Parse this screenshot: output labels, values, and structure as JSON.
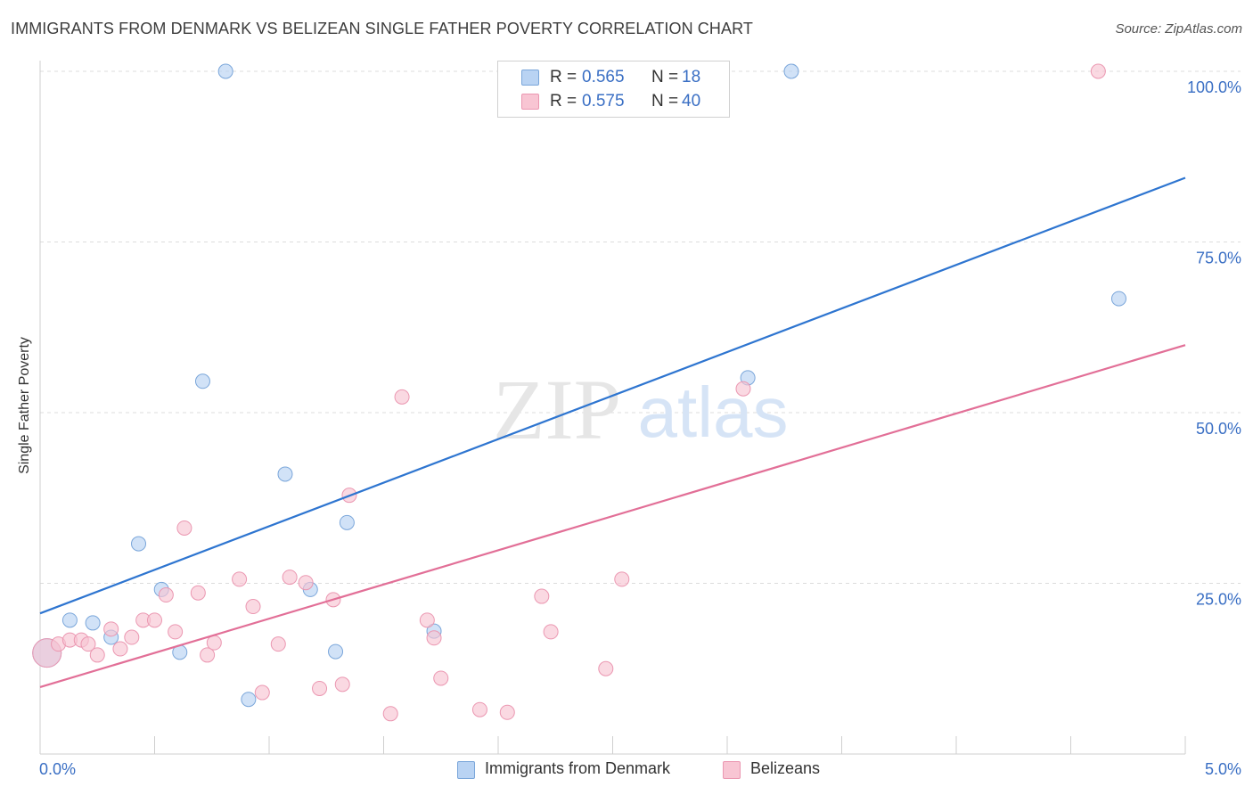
{
  "title": "IMMIGRANTS FROM DENMARK VS BELIZEAN SINGLE FATHER POVERTY CORRELATION CHART",
  "source": "Source: ZipAtlas.com",
  "watermark": {
    "zip": "ZIP",
    "atlas": "atlas"
  },
  "colors": {
    "blue_fill": "#b9d3f3",
    "blue_stroke": "#7aa6da",
    "blue_line": "#2e75d0",
    "pink_fill": "#f8c5d3",
    "pink_stroke": "#eb97b1",
    "pink_line": "#e26f97",
    "axis_text": "#3a6fc4"
  },
  "legend": {
    "blue": {
      "r_label": "R =",
      "r_value": "0.565",
      "n_label": "N =",
      "n_value": "18"
    },
    "pink": {
      "r_label": "R =",
      "r_value": "0.575",
      "n_label": "N =",
      "n_value": "40"
    }
  },
  "bottom_legend": {
    "blue": "Immigrants from Denmark",
    "pink": "Belizeans"
  },
  "chart_data": {
    "type": "scatter",
    "title": "IMMIGRANTS FROM DENMARK VS BELIZEAN SINGLE FATHER POVERTY CORRELATION CHART",
    "xlabel": "",
    "ylabel": "Single Father Poverty",
    "xlim": [
      0,
      5
    ],
    "ylim": [
      0,
      102
    ],
    "x_ticks": [
      "0.0%",
      "5.0%"
    ],
    "y_ticks": [
      {
        "value": 25,
        "label": "25.0%"
      },
      {
        "value": 50,
        "label": "50.0%"
      },
      {
        "value": 75,
        "label": "75.0%"
      },
      {
        "value": 100,
        "label": "100.0%"
      }
    ],
    "grid": true,
    "series": [
      {
        "name": "Immigrants from Denmark",
        "color": "blue",
        "r": 0.565,
        "n": 18,
        "trend": {
          "x0": 0,
          "y0": 20.6,
          "x1": 5,
          "y1": 84.4
        },
        "points": [
          {
            "x": 0.03,
            "y": 14.8,
            "big": true
          },
          {
            "x": 0.13,
            "y": 19.6
          },
          {
            "x": 0.23,
            "y": 19.2
          },
          {
            "x": 0.31,
            "y": 17.1
          },
          {
            "x": 0.43,
            "y": 30.8
          },
          {
            "x": 0.53,
            "y": 24.1
          },
          {
            "x": 0.61,
            "y": 14.9
          },
          {
            "x": 0.71,
            "y": 54.6
          },
          {
            "x": 0.81,
            "y": 100.0
          },
          {
            "x": 0.91,
            "y": 8.0
          },
          {
            "x": 1.07,
            "y": 41.0
          },
          {
            "x": 1.18,
            "y": 24.1
          },
          {
            "x": 1.29,
            "y": 15.0
          },
          {
            "x": 1.34,
            "y": 33.9
          },
          {
            "x": 1.72,
            "y": 18.0
          },
          {
            "x": 3.09,
            "y": 55.1
          },
          {
            "x": 3.28,
            "y": 100.0
          },
          {
            "x": 4.71,
            "y": 66.7
          }
        ]
      },
      {
        "name": "Belizeans",
        "color": "pink",
        "r": 0.575,
        "n": 40,
        "trend": {
          "x0": 0,
          "y0": 9.8,
          "x1": 5,
          "y1": 59.9
        },
        "points": [
          {
            "x": 0.03,
            "y": 14.8,
            "big": true
          },
          {
            "x": 0.08,
            "y": 16.1
          },
          {
            "x": 0.13,
            "y": 16.7
          },
          {
            "x": 0.18,
            "y": 16.7
          },
          {
            "x": 0.21,
            "y": 16.1
          },
          {
            "x": 0.25,
            "y": 14.5
          },
          {
            "x": 0.31,
            "y": 18.3
          },
          {
            "x": 0.35,
            "y": 15.4
          },
          {
            "x": 0.4,
            "y": 17.1
          },
          {
            "x": 0.45,
            "y": 19.6
          },
          {
            "x": 0.5,
            "y": 19.6
          },
          {
            "x": 0.55,
            "y": 23.3
          },
          {
            "x": 0.59,
            "y": 17.9
          },
          {
            "x": 0.63,
            "y": 33.1
          },
          {
            "x": 0.69,
            "y": 23.6
          },
          {
            "x": 0.73,
            "y": 14.5
          },
          {
            "x": 0.76,
            "y": 16.3
          },
          {
            "x": 0.87,
            "y": 25.6
          },
          {
            "x": 0.93,
            "y": 21.6
          },
          {
            "x": 0.97,
            "y": 9.0
          },
          {
            "x": 1.04,
            "y": 16.1
          },
          {
            "x": 1.09,
            "y": 25.9
          },
          {
            "x": 1.16,
            "y": 25.1
          },
          {
            "x": 1.22,
            "y": 9.6
          },
          {
            "x": 1.28,
            "y": 22.6
          },
          {
            "x": 1.32,
            "y": 10.2
          },
          {
            "x": 1.35,
            "y": 37.9
          },
          {
            "x": 1.53,
            "y": 5.9
          },
          {
            "x": 1.58,
            "y": 52.3
          },
          {
            "x": 1.69,
            "y": 19.6
          },
          {
            "x": 1.72,
            "y": 17.0
          },
          {
            "x": 1.75,
            "y": 11.1
          },
          {
            "x": 1.92,
            "y": 6.5
          },
          {
            "x": 2.04,
            "y": 6.1
          },
          {
            "x": 2.19,
            "y": 23.1
          },
          {
            "x": 2.23,
            "y": 17.9
          },
          {
            "x": 2.47,
            "y": 12.5
          },
          {
            "x": 2.54,
            "y": 25.6
          },
          {
            "x": 3.07,
            "y": 53.5
          },
          {
            "x": 4.62,
            "y": 100.0
          }
        ]
      }
    ]
  }
}
